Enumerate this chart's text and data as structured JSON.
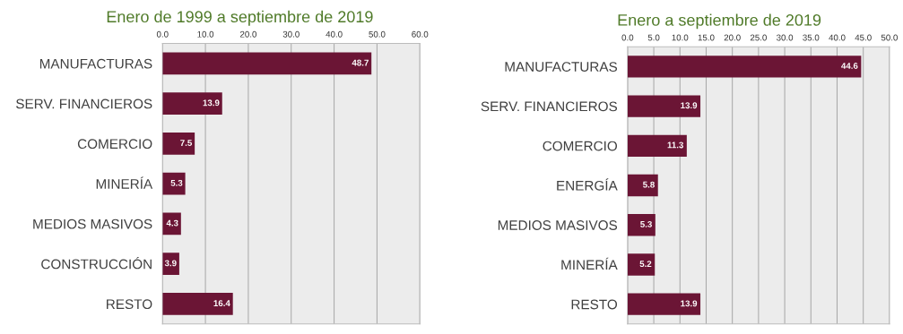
{
  "chart_data": [
    {
      "type": "bar",
      "orientation": "horizontal",
      "title": "Enero de 1999 a septiembre de 2019",
      "categories": [
        "MANUFACTURAS",
        "SERV. FINANCIEROS",
        "COMERCIO",
        "MINERÍA",
        "MEDIOS MASIVOS",
        "CONSTRUCCIÓN",
        "RESTO"
      ],
      "values": [
        48.7,
        13.9,
        7.5,
        5.3,
        4.3,
        3.9,
        16.4
      ],
      "color": "#6b1535",
      "xlim": [
        0,
        60
      ],
      "xticks": [
        {
          "value": 0,
          "label": "0.0"
        },
        {
          "value": 10,
          "label": "10.0"
        },
        {
          "value": 20,
          "label": "20.0"
        },
        {
          "value": 30,
          "label": "30.0"
        },
        {
          "value": 40,
          "label": "40.0"
        },
        {
          "value": 50,
          "label": "50.0"
        },
        {
          "value": 60,
          "label": "60.0"
        }
      ],
      "grid": "x",
      "data_labels": true
    },
    {
      "type": "bar",
      "orientation": "horizontal",
      "title": "Enero a septiembre de 2019",
      "categories": [
        "MANUFACTURAS",
        "SERV. FINANCIEROS",
        "COMERCIO",
        "ENERGÍA",
        "MEDIOS MASIVOS",
        "MINERÍA",
        "RESTO"
      ],
      "values": [
        44.6,
        13.9,
        11.3,
        5.8,
        5.3,
        5.2,
        13.9
      ],
      "color": "#6b1535",
      "xlim": [
        0,
        50
      ],
      "xticks": [
        {
          "value": 0,
          "label": "0.0"
        },
        {
          "value": 5,
          "label": "5.0"
        },
        {
          "value": 10,
          "label": "10.0"
        },
        {
          "value": 15,
          "label": "15.0"
        },
        {
          "value": 20,
          "label": "20.0"
        },
        {
          "value": 25,
          "label": "25.0"
        },
        {
          "value": 30,
          "label": "30.0"
        },
        {
          "value": 35,
          "label": "35.0"
        },
        {
          "value": 40,
          "label": "40.0"
        },
        {
          "value": 45,
          "label": "45.0"
        },
        {
          "value": 50,
          "label": "50.0"
        }
      ],
      "grid": "x",
      "data_labels": true
    }
  ]
}
